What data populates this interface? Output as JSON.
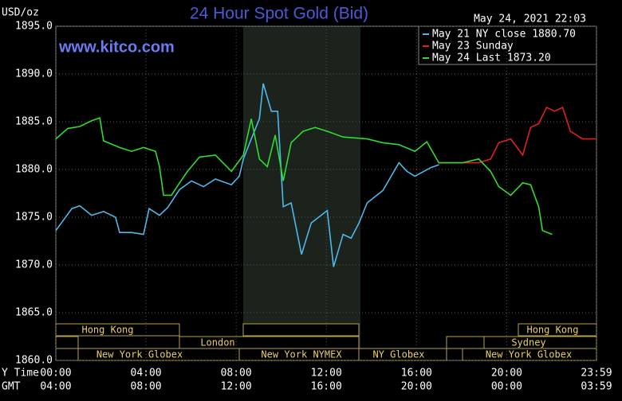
{
  "chart_data": {
    "type": "line",
    "title": "24 Hour Spot Gold (Bid)",
    "y_unit": "USD/oz",
    "timestamp": "May 24, 2021 22:03",
    "watermark": "www.kitco.com",
    "x_label": "Y Time",
    "x_label2": "GMT",
    "xlim": [
      0,
      23.983
    ],
    "xticks": [
      {
        "value": 0,
        "label": "00:00"
      },
      {
        "value": 4,
        "label": "04:00"
      },
      {
        "value": 8,
        "label": "08:00"
      },
      {
        "value": 12,
        "label": "12:00"
      },
      {
        "value": 16,
        "label": "16:00"
      },
      {
        "value": 20,
        "label": "20:00"
      },
      {
        "value": 23.983,
        "label": "23:59"
      }
    ],
    "gmt_labels": [
      "04:00",
      "08:00",
      "12:00",
      "16:00",
      "20:00",
      "00:00",
      "03:59"
    ],
    "ylim": [
      1860,
      1895
    ],
    "yticks": [
      {
        "value": 1860,
        "label": "1860.0"
      },
      {
        "value": 1865,
        "label": "1865.0"
      },
      {
        "value": 1870,
        "label": "1870.0"
      },
      {
        "value": 1875,
        "label": "1875.0"
      },
      {
        "value": 1880,
        "label": "1880.0"
      },
      {
        "value": 1885,
        "label": "1885.0"
      },
      {
        "value": 1890,
        "label": "1890.0"
      },
      {
        "value": 1895,
        "label": "1895.0"
      }
    ],
    "grid": true,
    "sessions": [
      "Hong Kong",
      "London",
      "New York Globex",
      "New York NYMEX",
      "NY Globex",
      "Hong Kong",
      "Sydney",
      "New York Globex"
    ],
    "series": [
      {
        "name": "May 21 NY close 1880.70",
        "color": "#4fb8e8",
        "x": [
          0,
          0.71,
          1.06,
          1.59,
          2.12,
          2.65,
          2.83,
          3.36,
          3.89,
          4.14,
          4.6,
          4.96,
          5.49,
          6.02,
          6.55,
          7.08,
          7.79,
          8.14,
          8.32,
          8.67,
          9.03,
          9.2,
          9.56,
          9.84,
          10.09,
          10.44,
          10.9,
          11.33,
          12.04,
          12.32,
          12.74,
          13.1,
          13.45,
          13.81,
          14.51,
          15.22,
          15.58,
          15.93,
          16.64,
          17
        ],
        "values": [
          1873.6,
          1875.9,
          1876.2,
          1875.2,
          1875.6,
          1875,
          1873.4,
          1873.4,
          1873.2,
          1875.9,
          1875.2,
          1876,
          1877.9,
          1878.8,
          1878.2,
          1879,
          1878.4,
          1879.3,
          1881.1,
          1883.2,
          1885.3,
          1889,
          1886.1,
          1886.1,
          1876.1,
          1876.5,
          1871.1,
          1874.4,
          1875.7,
          1869.8,
          1873.2,
          1872.8,
          1874.4,
          1876.5,
          1877.8,
          1880.7,
          1879.8,
          1879.3,
          1880.2,
          1880.5
        ]
      },
      {
        "name": "May 23 Sunday",
        "color": "#e02020",
        "x": [
          16.99,
          18.76,
          19.29,
          19.65,
          20.18,
          20.71,
          21.06,
          21.42,
          21.77,
          22.12,
          22.48,
          22.83,
          23.36,
          23.983
        ],
        "values": [
          1880.7,
          1880.7,
          1881.1,
          1882.8,
          1883.2,
          1881.5,
          1884.4,
          1884.8,
          1886.5,
          1886.1,
          1886.5,
          1884,
          1883.2,
          1883.2
        ]
      },
      {
        "name": "May 24 Last 1873.20",
        "color": "#2edc2e",
        "x": [
          0,
          0.53,
          1.06,
          1.59,
          1.95,
          2.12,
          2.83,
          3.36,
          3.89,
          4.42,
          4.6,
          4.78,
          5.13,
          5.49,
          5.84,
          6.37,
          7.08,
          7.79,
          8.32,
          8.67,
          9.03,
          9.38,
          9.73,
          10.09,
          10.44,
          10.97,
          11.5,
          12.04,
          12.74,
          13.81,
          14.51,
          15.22,
          15.93,
          16.46,
          16.99,
          18.05,
          18.76,
          19.29,
          19.65,
          20.18,
          20.71,
          21.06,
          21.42,
          21.59,
          22.02
        ],
        "values": [
          1883.2,
          1884.3,
          1884.5,
          1885.1,
          1885.4,
          1883,
          1882.3,
          1881.9,
          1882.3,
          1881.9,
          1880.3,
          1877.3,
          1877.3,
          1878.6,
          1879.8,
          1881.3,
          1881.5,
          1879.8,
          1881.5,
          1885.3,
          1881.1,
          1880.3,
          1883.6,
          1878.8,
          1882.8,
          1884,
          1884.4,
          1884,
          1883.4,
          1883.2,
          1882.8,
          1882.6,
          1881.9,
          1882.9,
          1880.7,
          1880.7,
          1881.1,
          1879.8,
          1878.2,
          1877.3,
          1878.6,
          1878.4,
          1876.1,
          1873.6,
          1873.2
        ]
      }
    ]
  }
}
